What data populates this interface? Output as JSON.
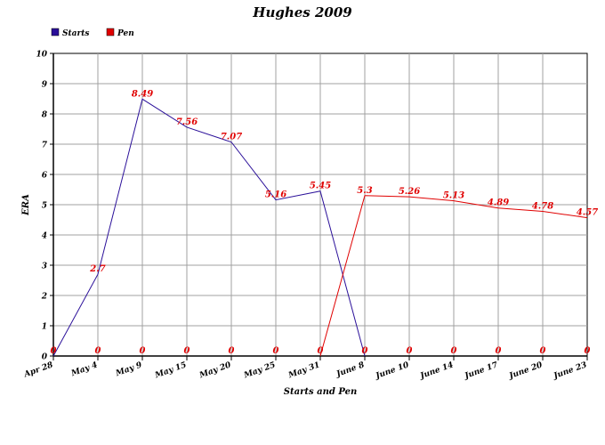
{
  "chart_data": {
    "type": "line",
    "title": "Hughes 2009",
    "xlabel": "Starts and Pen",
    "ylabel": "ERA",
    "ylim": [
      0,
      10
    ],
    "yticks": [
      "0",
      "1",
      "2",
      "3",
      "4",
      "5",
      "6",
      "7",
      "8",
      "9",
      "10"
    ],
    "categories": [
      "Apr 28",
      "May 4",
      "May 9",
      "May 15",
      "May 20",
      "May 25",
      "May 31",
      "June 8",
      "June 10",
      "June 14",
      "June 17",
      "June 20",
      "June 23"
    ],
    "grid": true,
    "legend_position": "top-left",
    "series": [
      {
        "name": "Starts",
        "color": "#2a0f99",
        "values": [
          0,
          2.7,
          8.49,
          7.56,
          7.07,
          5.16,
          5.45,
          0,
          null,
          null,
          null,
          null,
          null
        ],
        "labels": [
          "0",
          "2.7",
          "8.49",
          "7.56",
          "7.07",
          "5.16",
          "5.45",
          "0",
          "0",
          "0",
          "0",
          "0",
          "0"
        ]
      },
      {
        "name": "Pen",
        "color": "#e00000",
        "values": [
          null,
          null,
          null,
          null,
          null,
          null,
          0,
          5.3,
          5.26,
          5.13,
          4.89,
          4.78,
          4.57
        ],
        "labels": [
          "0",
          "0",
          "0",
          "0",
          "0",
          "0",
          "0",
          "5.3",
          "5.26",
          "5.13",
          "4.89",
          "4.78",
          "4.57"
        ]
      }
    ]
  }
}
